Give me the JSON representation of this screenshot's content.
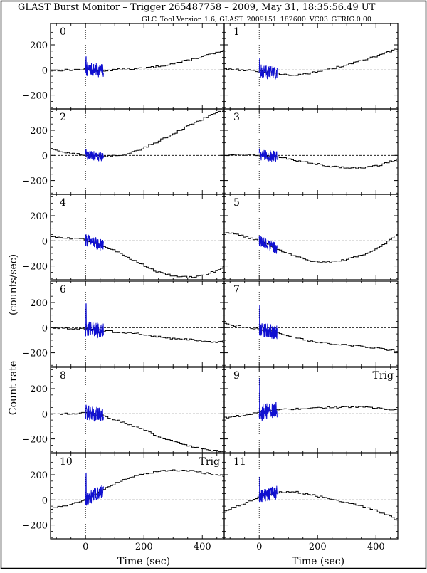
{
  "header": {
    "title": "GLAST Burst Monitor  –  Trigger 265487758  –  2009, May 31, 18:35:56.49 UT",
    "subtitle": "GLC_Tool Version 1.6; GLAST_2009151_182600_VC03_GTRIG.0.00"
  },
  "axes": {
    "xlabel": "Time (sec)",
    "ylabel_line1": "(counts/sec)",
    "ylabel_line2": "Count rate"
  },
  "colors": {
    "background_trace": "#000000",
    "burst_trace": "#1010d0",
    "frame": "#000000"
  },
  "chart_data": {
    "type": "line",
    "xlim": [
      -120,
      475
    ],
    "ylim": [
      -310,
      370
    ],
    "x_ticks": [
      0,
      200,
      400
    ],
    "x_tick_labels": [
      "0",
      "200",
      "400"
    ],
    "y_ticks": [
      -200,
      0,
      200
    ],
    "y_tick_labels": [
      "−200",
      "0",
      "200"
    ],
    "zero_line": {
      "y": 0,
      "style": "dashed"
    },
    "trigger_line": {
      "x": 0,
      "style": "dotted"
    },
    "burst_window": [
      0,
      62
    ],
    "panels": [
      {
        "id": "0",
        "label": "0",
        "trig": "",
        "bg": [
          [
            -120,
            -5
          ],
          [
            -60,
            0
          ],
          [
            0,
            5
          ],
          [
            60,
            -5
          ],
          [
            120,
            5
          ],
          [
            180,
            10
          ],
          [
            240,
            25
          ],
          [
            300,
            50
          ],
          [
            360,
            80
          ],
          [
            420,
            120
          ],
          [
            475,
            150
          ]
        ],
        "spike": 100,
        "noise": 55
      },
      {
        "id": "1",
        "label": "1",
        "trig": "",
        "bg": [
          [
            -120,
            10
          ],
          [
            -60,
            0
          ],
          [
            0,
            -10
          ],
          [
            60,
            -30
          ],
          [
            120,
            -40
          ],
          [
            180,
            -25
          ],
          [
            240,
            5
          ],
          [
            300,
            40
          ],
          [
            360,
            80
          ],
          [
            420,
            120
          ],
          [
            475,
            170
          ]
        ],
        "spike": 100,
        "noise": 55
      },
      {
        "id": "2",
        "label": "2",
        "trig": "",
        "bg": [
          [
            -120,
            50
          ],
          [
            -60,
            20
          ],
          [
            0,
            5
          ],
          [
            60,
            -10
          ],
          [
            120,
            0
          ],
          [
            180,
            40
          ],
          [
            240,
            100
          ],
          [
            300,
            170
          ],
          [
            360,
            240
          ],
          [
            420,
            310
          ],
          [
            475,
            360
          ]
        ],
        "spike": 40,
        "noise": 40
      },
      {
        "id": "3",
        "label": "3",
        "trig": "",
        "bg": [
          [
            -120,
            0
          ],
          [
            -60,
            5
          ],
          [
            0,
            5
          ],
          [
            60,
            -10
          ],
          [
            120,
            -40
          ],
          [
            180,
            -60
          ],
          [
            240,
            -85
          ],
          [
            300,
            -100
          ],
          [
            360,
            -100
          ],
          [
            420,
            -75
          ],
          [
            475,
            -30
          ]
        ],
        "spike": 40,
        "noise": 45
      },
      {
        "id": "4",
        "label": "4",
        "trig": "",
        "bg": [
          [
            -120,
            30
          ],
          [
            -60,
            20
          ],
          [
            0,
            10
          ],
          [
            60,
            -40
          ],
          [
            120,
            -100
          ],
          [
            180,
            -170
          ],
          [
            240,
            -240
          ],
          [
            300,
            -280
          ],
          [
            360,
            -290
          ],
          [
            420,
            -265
          ],
          [
            475,
            -210
          ]
        ],
        "spike": 40,
        "noise": 50
      },
      {
        "id": "5",
        "label": "5",
        "trig": "",
        "bg": [
          [
            -120,
            70
          ],
          [
            -60,
            40
          ],
          [
            0,
            0
          ],
          [
            60,
            -60
          ],
          [
            120,
            -120
          ],
          [
            180,
            -160
          ],
          [
            240,
            -170
          ],
          [
            300,
            -150
          ],
          [
            360,
            -110
          ],
          [
            420,
            -40
          ],
          [
            475,
            50
          ]
        ],
        "spike": 40,
        "noise": 45
      },
      {
        "id": "6",
        "label": "6",
        "trig": "",
        "bg": [
          [
            -120,
            0
          ],
          [
            -60,
            -5
          ],
          [
            0,
            -10
          ],
          [
            60,
            -20
          ],
          [
            120,
            -40
          ],
          [
            180,
            -50
          ],
          [
            240,
            -70
          ],
          [
            300,
            -85
          ],
          [
            360,
            -95
          ],
          [
            420,
            -110
          ],
          [
            475,
            -115
          ]
        ],
        "spike": 200,
        "noise": 60
      },
      {
        "id": "7",
        "label": "7",
        "trig": "",
        "bg": [
          [
            -120,
            30
          ],
          [
            -60,
            10
          ],
          [
            0,
            -10
          ],
          [
            60,
            -40
          ],
          [
            120,
            -80
          ],
          [
            180,
            -110
          ],
          [
            240,
            -125
          ],
          [
            300,
            -140
          ],
          [
            360,
            -150
          ],
          [
            420,
            -165
          ],
          [
            475,
            -190
          ]
        ],
        "spike": 190,
        "noise": 60
      },
      {
        "id": "8",
        "label": "8",
        "trig": "",
        "bg": [
          [
            -120,
            0
          ],
          [
            -60,
            0
          ],
          [
            0,
            10
          ],
          [
            60,
            -15
          ],
          [
            120,
            -60
          ],
          [
            180,
            -110
          ],
          [
            240,
            -170
          ],
          [
            300,
            -220
          ],
          [
            360,
            -260
          ],
          [
            420,
            -290
          ],
          [
            475,
            -300
          ]
        ],
        "spike": 60,
        "noise": 60
      },
      {
        "id": "9",
        "label": "9",
        "trig": "Trig",
        "bg": [
          [
            -120,
            -30
          ],
          [
            -60,
            -15
          ],
          [
            0,
            10
          ],
          [
            60,
            30
          ],
          [
            120,
            40
          ],
          [
            180,
            45
          ],
          [
            240,
            50
          ],
          [
            300,
            55
          ],
          [
            360,
            55
          ],
          [
            420,
            40
          ],
          [
            475,
            30
          ]
        ],
        "spike": 270,
        "noise": 70
      },
      {
        "id": "10",
        "label": "10",
        "trig": "Trig",
        "bg": [
          [
            -120,
            -70
          ],
          [
            -60,
            -40
          ],
          [
            0,
            0
          ],
          [
            60,
            80
          ],
          [
            120,
            150
          ],
          [
            180,
            195
          ],
          [
            240,
            225
          ],
          [
            300,
            235
          ],
          [
            360,
            230
          ],
          [
            420,
            210
          ],
          [
            475,
            190
          ]
        ],
        "spike": 210,
        "noise": 55
      },
      {
        "id": "11",
        "label": "11",
        "trig": "",
        "bg": [
          [
            -120,
            -90
          ],
          [
            -60,
            -40
          ],
          [
            0,
            20
          ],
          [
            60,
            60
          ],
          [
            120,
            65
          ],
          [
            180,
            40
          ],
          [
            240,
            10
          ],
          [
            300,
            -25
          ],
          [
            360,
            -55
          ],
          [
            420,
            -100
          ],
          [
            475,
            -160
          ]
        ],
        "spike": 160,
        "noise": 55
      }
    ]
  }
}
